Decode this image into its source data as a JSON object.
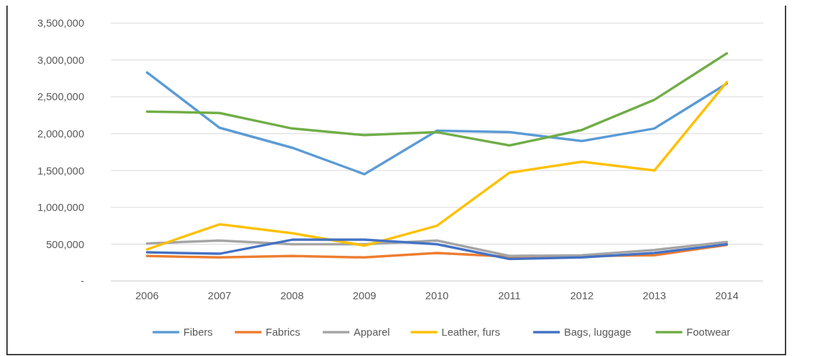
{
  "chart_data": {
    "type": "line",
    "categories": [
      "2006",
      "2007",
      "2008",
      "2009",
      "2010",
      "2011",
      "2012",
      "2013",
      "2014"
    ],
    "series": [
      {
        "name": "Fibers",
        "color": "#5b9bd5",
        "values": [
          2830000,
          2080000,
          1810000,
          1450000,
          2040000,
          2020000,
          1900000,
          2070000,
          2680000
        ]
      },
      {
        "name": "Fabrics",
        "color": "#ed7d31",
        "values": [
          340000,
          320000,
          340000,
          320000,
          380000,
          330000,
          340000,
          350000,
          490000
        ]
      },
      {
        "name": "Apparel",
        "color": "#a5a5a5",
        "values": [
          510000,
          550000,
          500000,
          500000,
          550000,
          340000,
          350000,
          420000,
          530000
        ]
      },
      {
        "name": "Leather, furs",
        "color": "#ffc000",
        "values": [
          430000,
          770000,
          650000,
          480000,
          750000,
          1470000,
          1620000,
          1500000,
          2700000
        ]
      },
      {
        "name": "Bags, luggage",
        "color": "#4472c4",
        "values": [
          390000,
          370000,
          560000,
          560000,
          500000,
          300000,
          320000,
          380000,
          500000
        ]
      },
      {
        "name": "Footwear",
        "color": "#70ad47",
        "values": [
          2300000,
          2280000,
          2070000,
          1980000,
          2020000,
          1840000,
          2050000,
          2460000,
          3090000
        ]
      }
    ],
    "ylim": [
      0,
      3500000
    ],
    "yticks": [
      {
        "value": 0,
        "label": "-"
      },
      {
        "value": 500000,
        "label": "500,000"
      },
      {
        "value": 1000000,
        "label": "1,000,000"
      },
      {
        "value": 1500000,
        "label": "1,500,000"
      },
      {
        "value": 2000000,
        "label": "2,000,000"
      },
      {
        "value": 2500000,
        "label": "2,500,000"
      },
      {
        "value": 3000000,
        "label": "3,000,000"
      },
      {
        "value": 3500000,
        "label": "3,500,000"
      }
    ],
    "grid": "y",
    "legend": "bottom",
    "marker": "none",
    "line_style": "solid"
  }
}
